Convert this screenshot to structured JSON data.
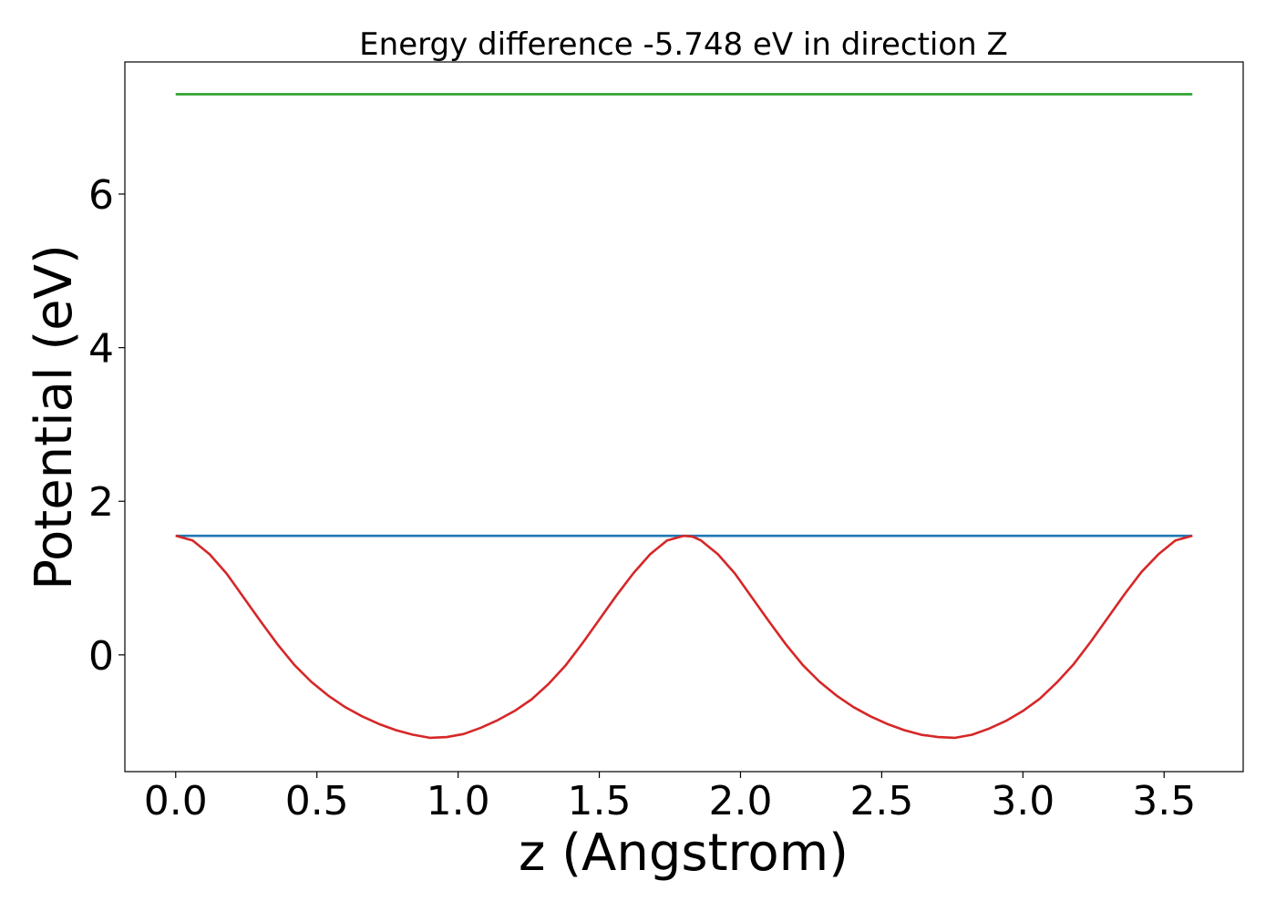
{
  "chart_data": {
    "type": "line",
    "title": "Energy difference -5.748 eV in direction Z",
    "xlabel": "z (Angstrom)",
    "ylabel": "Potential (eV)",
    "xlim": [
      -0.18,
      3.78
    ],
    "ylim": [
      -1.52,
      7.72
    ],
    "xticks": [
      0.0,
      0.5,
      1.0,
      1.5,
      2.0,
      2.5,
      3.0,
      3.5
    ],
    "xtick_labels": [
      "0.0",
      "0.5",
      "1.0",
      "1.5",
      "2.0",
      "2.5",
      "3.0",
      "3.5"
    ],
    "yticks": [
      0,
      2,
      4,
      6
    ],
    "ytick_labels": [
      "0",
      "2",
      "4",
      "6"
    ],
    "grid": false,
    "legend": false,
    "series": [
      {
        "color": "#2ca02c",
        "x": [
          0.0,
          3.6
        ],
        "y": [
          7.3,
          7.3
        ]
      },
      {
        "color": "#1f77b4",
        "x": [
          0.0,
          3.6
        ],
        "y": [
          1.55,
          1.55
        ]
      },
      {
        "color": "#d62728",
        "x": [
          0.0,
          0.06,
          0.12,
          0.18,
          0.24,
          0.3,
          0.36,
          0.42,
          0.48,
          0.54,
          0.6,
          0.66,
          0.72,
          0.78,
          0.84,
          0.9,
          0.96,
          1.02,
          1.08,
          1.14,
          1.2,
          1.26,
          1.32,
          1.38,
          1.44,
          1.5,
          1.56,
          1.62,
          1.68,
          1.74,
          1.8,
          1.83,
          1.86,
          1.92,
          1.98,
          2.04,
          2.1,
          2.16,
          2.22,
          2.28,
          2.34,
          2.4,
          2.46,
          2.52,
          2.58,
          2.64,
          2.7,
          2.76,
          2.82,
          2.88,
          2.94,
          3.0,
          3.06,
          3.12,
          3.18,
          3.24,
          3.3,
          3.36,
          3.42,
          3.48,
          3.54,
          3.6
        ],
        "y": [
          1.55,
          1.49,
          1.31,
          1.06,
          0.75,
          0.44,
          0.14,
          -0.13,
          -0.35,
          -0.53,
          -0.68,
          -0.8,
          -0.9,
          -0.98,
          -1.04,
          -1.08,
          -1.07,
          -1.03,
          -0.95,
          -0.85,
          -0.73,
          -0.58,
          -0.38,
          -0.14,
          0.15,
          0.46,
          0.77,
          1.06,
          1.31,
          1.49,
          1.55,
          1.54,
          1.49,
          1.31,
          1.06,
          0.75,
          0.44,
          0.14,
          -0.13,
          -0.35,
          -0.53,
          -0.68,
          -0.8,
          -0.9,
          -0.98,
          -1.04,
          -1.07,
          -1.08,
          -1.04,
          -0.96,
          -0.86,
          -0.73,
          -0.57,
          -0.36,
          -0.12,
          0.17,
          0.48,
          0.79,
          1.08,
          1.31,
          1.49,
          1.55
        ]
      }
    ]
  }
}
